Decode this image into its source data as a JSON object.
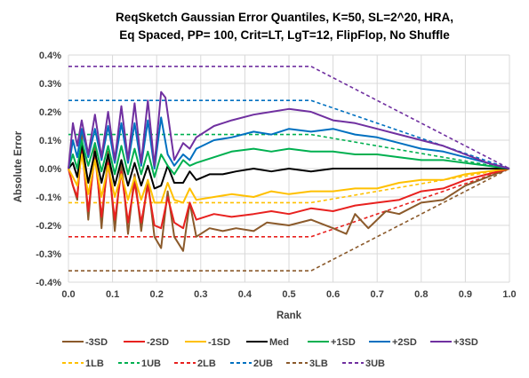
{
  "chart_data": {
    "type": "line",
    "title_lines": [
      "ReqSketch Gaussian Error Quantiles, K=50, SL=2^20,  HRA,",
      "Eq Spaced, PP= 100, Crit=LT, LgT=12, FlipFlop, No Shuffle"
    ],
    "xlabel": "Rank",
    "ylabel": "Absolute Error",
    "xlim": [
      0.0,
      1.0
    ],
    "ylim": [
      -0.004,
      0.004
    ],
    "x_ticks": [
      "0.0",
      "0.1",
      "0.2",
      "0.3",
      "0.4",
      "0.5",
      "0.6",
      "0.7",
      "0.8",
      "0.9",
      "1.0"
    ],
    "y_ticks": [
      "0.4%",
      "0.3%",
      "0.2%",
      "0.1%",
      "0.0%",
      "-0.1%",
      "-0.2%",
      "-0.3%",
      "-0.4%"
    ],
    "grid": true,
    "legend_position": "bottom",
    "series": [
      {
        "name": "-3SD",
        "color": "#8B5A2B",
        "dashed": false,
        "points": [
          [
            0,
            0
          ],
          [
            0.01,
            -0.0006
          ],
          [
            0.02,
            -0.0011
          ],
          [
            0.03,
            0.0012
          ],
          [
            0.045,
            -0.0018
          ],
          [
            0.06,
            0.0009
          ],
          [
            0.075,
            -0.0021
          ],
          [
            0.09,
            0.0006
          ],
          [
            0.105,
            -0.0022
          ],
          [
            0.12,
            0.0003
          ],
          [
            0.135,
            -0.0023
          ],
          [
            0.15,
            -0.0002
          ],
          [
            0.165,
            -0.0022
          ],
          [
            0.18,
            -0.0004
          ],
          [
            0.195,
            -0.0024
          ],
          [
            0.21,
            -0.0028
          ],
          [
            0.225,
            -0.0008
          ],
          [
            0.24,
            -0.0024
          ],
          [
            0.26,
            -0.0029
          ],
          [
            0.275,
            -0.0012
          ],
          [
            0.29,
            -0.0024
          ],
          [
            0.32,
            -0.0021
          ],
          [
            0.35,
            -0.0022
          ],
          [
            0.38,
            -0.0021
          ],
          [
            0.42,
            -0.0022
          ],
          [
            0.45,
            -0.0019
          ],
          [
            0.5,
            -0.002
          ],
          [
            0.55,
            -0.0018
          ],
          [
            0.6,
            -0.0021
          ],
          [
            0.63,
            -0.0023
          ],
          [
            0.65,
            -0.0016
          ],
          [
            0.68,
            -0.0021
          ],
          [
            0.72,
            -0.0015
          ],
          [
            0.75,
            -0.0016
          ],
          [
            0.8,
            -0.0012
          ],
          [
            0.85,
            -0.0011
          ],
          [
            0.9,
            -0.0006
          ],
          [
            0.95,
            -0.0003
          ],
          [
            1.0,
            0
          ]
        ]
      },
      {
        "name": "-2SD",
        "color": "#E8211F",
        "dashed": false,
        "points": [
          [
            0,
            0
          ],
          [
            0.01,
            -0.0006
          ],
          [
            0.02,
            -0.001
          ],
          [
            0.03,
            0.0008
          ],
          [
            0.045,
            -0.0015
          ],
          [
            0.06,
            0.0005
          ],
          [
            0.075,
            -0.0017
          ],
          [
            0.09,
            0.0002
          ],
          [
            0.105,
            -0.0018
          ],
          [
            0.12,
            -0.0001
          ],
          [
            0.135,
            -0.0019
          ],
          [
            0.15,
            -0.0005
          ],
          [
            0.165,
            -0.0019
          ],
          [
            0.18,
            -0.0006
          ],
          [
            0.195,
            -0.002
          ],
          [
            0.21,
            -0.0021
          ],
          [
            0.225,
            -0.001
          ],
          [
            0.24,
            -0.0019
          ],
          [
            0.26,
            -0.0021
          ],
          [
            0.275,
            -0.0012
          ],
          [
            0.29,
            -0.0018
          ],
          [
            0.33,
            -0.0016
          ],
          [
            0.37,
            -0.0017
          ],
          [
            0.42,
            -0.0016
          ],
          [
            0.46,
            -0.0015
          ],
          [
            0.5,
            -0.0016
          ],
          [
            0.55,
            -0.0014
          ],
          [
            0.6,
            -0.0015
          ],
          [
            0.65,
            -0.0013
          ],
          [
            0.7,
            -0.0012
          ],
          [
            0.75,
            -0.0011
          ],
          [
            0.8,
            -0.0008
          ],
          [
            0.85,
            -0.0007
          ],
          [
            0.9,
            -0.0004
          ],
          [
            0.95,
            -0.0002
          ],
          [
            1.0,
            0
          ]
        ]
      },
      {
        "name": "-1SD",
        "color": "#FFC000",
        "dashed": false,
        "points": [
          [
            0,
            0
          ],
          [
            0.01,
            -0.0003
          ],
          [
            0.02,
            -0.0006
          ],
          [
            0.03,
            0.0005
          ],
          [
            0.045,
            -0.0009
          ],
          [
            0.06,
            0.0003
          ],
          [
            0.075,
            -0.001
          ],
          [
            0.09,
            0.0001
          ],
          [
            0.105,
            -0.001
          ],
          [
            0.12,
            -0.0002
          ],
          [
            0.135,
            -0.0011
          ],
          [
            0.15,
            -0.0003
          ],
          [
            0.165,
            -0.0011
          ],
          [
            0.18,
            -0.0004
          ],
          [
            0.195,
            -0.0012
          ],
          [
            0.21,
            -0.0012
          ],
          [
            0.225,
            -0.0005
          ],
          [
            0.24,
            -0.0011
          ],
          [
            0.26,
            -0.0012
          ],
          [
            0.275,
            -0.0007
          ],
          [
            0.29,
            -0.0011
          ],
          [
            0.33,
            -0.001
          ],
          [
            0.37,
            -0.0009
          ],
          [
            0.42,
            -0.001
          ],
          [
            0.46,
            -0.0008
          ],
          [
            0.5,
            -0.0009
          ],
          [
            0.55,
            -0.0008
          ],
          [
            0.6,
            -0.0008
          ],
          [
            0.65,
            -0.0007
          ],
          [
            0.7,
            -0.0007
          ],
          [
            0.75,
            -0.0005
          ],
          [
            0.8,
            -0.0004
          ],
          [
            0.85,
            -0.0004
          ],
          [
            0.9,
            -0.0002
          ],
          [
            0.95,
            -0.0001
          ],
          [
            1.0,
            0
          ]
        ]
      },
      {
        "name": "Med",
        "color": "#000000",
        "dashed": false,
        "points": [
          [
            0,
            0
          ],
          [
            0.01,
            0.0002
          ],
          [
            0.02,
            -0.0003
          ],
          [
            0.03,
            0.0009
          ],
          [
            0.045,
            -0.0005
          ],
          [
            0.06,
            0.0006
          ],
          [
            0.075,
            -0.0005
          ],
          [
            0.09,
            0.0005
          ],
          [
            0.105,
            -0.0006
          ],
          [
            0.12,
            0.0003
          ],
          [
            0.135,
            -0.0006
          ],
          [
            0.15,
            0.0002
          ],
          [
            0.165,
            -0.0006
          ],
          [
            0.18,
            0.0001
          ],
          [
            0.195,
            -0.0007
          ],
          [
            0.21,
            -0.0006
          ],
          [
            0.225,
            0.0001
          ],
          [
            0.24,
            -0.0005
          ],
          [
            0.26,
            -0.0005
          ],
          [
            0.275,
            -0.0001
          ],
          [
            0.29,
            -0.0004
          ],
          [
            0.32,
            -0.0002
          ],
          [
            0.35,
            -0.0002
          ],
          [
            0.38,
            -0.0001
          ],
          [
            0.42,
            0.0
          ],
          [
            0.46,
            -0.0001
          ],
          [
            0.5,
            0.0
          ],
          [
            0.55,
            -0.0001
          ],
          [
            0.6,
            0.0
          ],
          [
            0.65,
            0.0
          ],
          [
            0.7,
            0.0
          ],
          [
            0.75,
            0.0
          ],
          [
            0.8,
            0.0
          ],
          [
            0.85,
            0.0
          ],
          [
            0.9,
            0.0
          ],
          [
            0.95,
            0.0
          ],
          [
            1.0,
            0
          ]
        ]
      },
      {
        "name": "+1SD",
        "color": "#00B050",
        "dashed": false,
        "points": [
          [
            0,
            0
          ],
          [
            0.01,
            0.0005
          ],
          [
            0.02,
            0.0
          ],
          [
            0.03,
            0.001
          ],
          [
            0.045,
            0.0001
          ],
          [
            0.06,
            0.0009
          ],
          [
            0.075,
            -0.0001
          ],
          [
            0.09,
            0.0008
          ],
          [
            0.105,
            -0.0002
          ],
          [
            0.12,
            0.0008
          ],
          [
            0.135,
            -0.0002
          ],
          [
            0.15,
            0.0007
          ],
          [
            0.165,
            -0.0002
          ],
          [
            0.18,
            0.0006
          ],
          [
            0.195,
            -0.0003
          ],
          [
            0.21,
            0.0005
          ],
          [
            0.225,
            0.0001
          ],
          [
            0.24,
            -0.0002
          ],
          [
            0.26,
            0.0003
          ],
          [
            0.275,
            0.0001
          ],
          [
            0.29,
            0.0002
          ],
          [
            0.33,
            0.0004
          ],
          [
            0.37,
            0.0006
          ],
          [
            0.42,
            0.0007
          ],
          [
            0.46,
            0.0006
          ],
          [
            0.5,
            0.0007
          ],
          [
            0.55,
            0.0006
          ],
          [
            0.6,
            0.0006
          ],
          [
            0.65,
            0.0005
          ],
          [
            0.7,
            0.0005
          ],
          [
            0.75,
            0.0004
          ],
          [
            0.8,
            0.0003
          ],
          [
            0.85,
            0.0003
          ],
          [
            0.9,
            0.0002
          ],
          [
            0.95,
            0.0001
          ],
          [
            1.0,
            0
          ]
        ]
      },
      {
        "name": "+2SD",
        "color": "#0070C0",
        "dashed": false,
        "points": [
          [
            0,
            0
          ],
          [
            0.01,
            0.001
          ],
          [
            0.02,
            0.0004
          ],
          [
            0.03,
            0.0014
          ],
          [
            0.045,
            0.0004
          ],
          [
            0.06,
            0.0014
          ],
          [
            0.075,
            0.0003
          ],
          [
            0.09,
            0.0015
          ],
          [
            0.105,
            0.0002
          ],
          [
            0.12,
            0.0016
          ],
          [
            0.135,
            0.0002
          ],
          [
            0.15,
            0.0016
          ],
          [
            0.165,
            0.0001
          ],
          [
            0.18,
            0.0017
          ],
          [
            0.195,
            0.0
          ],
          [
            0.21,
            0.0018
          ],
          [
            0.225,
            0.0005
          ],
          [
            0.24,
            0.0001
          ],
          [
            0.26,
            0.0005
          ],
          [
            0.275,
            0.0003
          ],
          [
            0.29,
            0.0007
          ],
          [
            0.33,
            0.001
          ],
          [
            0.37,
            0.0011
          ],
          [
            0.42,
            0.0013
          ],
          [
            0.46,
            0.0012
          ],
          [
            0.5,
            0.0014
          ],
          [
            0.55,
            0.0013
          ],
          [
            0.6,
            0.0014
          ],
          [
            0.65,
            0.0012
          ],
          [
            0.7,
            0.0011
          ],
          [
            0.75,
            0.0009
          ],
          [
            0.8,
            0.0007
          ],
          [
            0.85,
            0.0006
          ],
          [
            0.9,
            0.0004
          ],
          [
            0.95,
            0.0002
          ],
          [
            1.0,
            0
          ]
        ]
      },
      {
        "name": "+3SD",
        "color": "#7030A0",
        "dashed": false,
        "points": [
          [
            0,
            0
          ],
          [
            0.01,
            0.0016
          ],
          [
            0.02,
            0.0008
          ],
          [
            0.03,
            0.0017
          ],
          [
            0.045,
            0.0005
          ],
          [
            0.06,
            0.0019
          ],
          [
            0.075,
            0.0004
          ],
          [
            0.09,
            0.002
          ],
          [
            0.105,
            0.0003
          ],
          [
            0.12,
            0.0022
          ],
          [
            0.135,
            0.0003
          ],
          [
            0.15,
            0.0023
          ],
          [
            0.165,
            0.0002
          ],
          [
            0.18,
            0.0024
          ],
          [
            0.195,
            0.0001
          ],
          [
            0.21,
            0.0027
          ],
          [
            0.22,
            0.0025
          ],
          [
            0.24,
            0.0003
          ],
          [
            0.26,
            0.0009
          ],
          [
            0.275,
            0.0007
          ],
          [
            0.29,
            0.0011
          ],
          [
            0.33,
            0.0015
          ],
          [
            0.37,
            0.0017
          ],
          [
            0.42,
            0.0019
          ],
          [
            0.46,
            0.002
          ],
          [
            0.5,
            0.0021
          ],
          [
            0.55,
            0.002
          ],
          [
            0.6,
            0.0017
          ],
          [
            0.65,
            0.0016
          ],
          [
            0.7,
            0.0014
          ],
          [
            0.75,
            0.0012
          ],
          [
            0.8,
            0.001
          ],
          [
            0.85,
            0.0008
          ],
          [
            0.9,
            0.0005
          ],
          [
            0.95,
            0.0002
          ],
          [
            1.0,
            0
          ]
        ]
      },
      {
        "name": "1LB",
        "color": "#FFC000",
        "dashed": true,
        "points": [
          [
            0,
            -0.0012
          ],
          [
            0.55,
            -0.0012
          ],
          [
            1.0,
            0
          ]
        ]
      },
      {
        "name": "1UB",
        "color": "#00B050",
        "dashed": true,
        "points": [
          [
            0,
            0.0012
          ],
          [
            0.55,
            0.0012
          ],
          [
            1.0,
            0
          ]
        ]
      },
      {
        "name": "2LB",
        "color": "#E8211F",
        "dashed": true,
        "points": [
          [
            0,
            -0.0024
          ],
          [
            0.55,
            -0.0024
          ],
          [
            1.0,
            0
          ]
        ]
      },
      {
        "name": "2UB",
        "color": "#0070C0",
        "dashed": true,
        "points": [
          [
            0,
            0.0024
          ],
          [
            0.55,
            0.0024
          ],
          [
            1.0,
            0
          ]
        ]
      },
      {
        "name": "3LB",
        "color": "#8B5A2B",
        "dashed": true,
        "points": [
          [
            0,
            -0.0036
          ],
          [
            0.55,
            -0.0036
          ],
          [
            1.0,
            0
          ]
        ]
      },
      {
        "name": "3UB",
        "color": "#7030A0",
        "dashed": true,
        "points": [
          [
            0,
            0.0036
          ],
          [
            0.55,
            0.0036
          ],
          [
            1.0,
            0
          ]
        ]
      }
    ]
  }
}
